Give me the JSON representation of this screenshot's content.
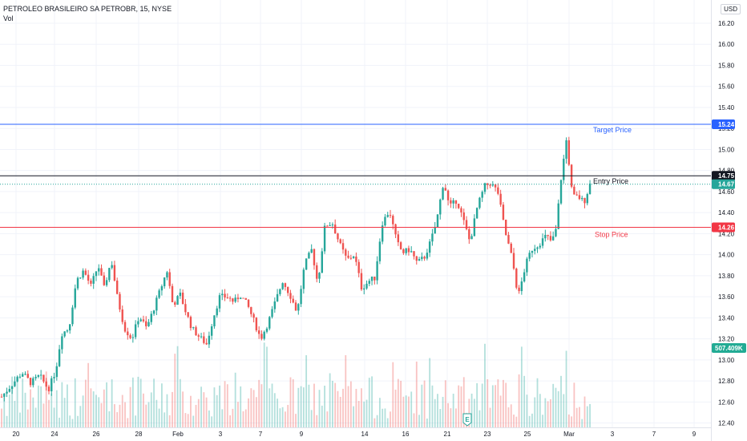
{
  "header": {
    "symbol_line": "PETROLEO BRASILEIRO SA PETROBR, 15, NYSE",
    "indicator": "Vol",
    "currency": "USD"
  },
  "colors": {
    "up": "#26a69a",
    "down": "#ef5350",
    "target": "#2962ff",
    "entry": "#131722",
    "stop": "#f23645",
    "current": "#26a69a",
    "volume_tag": "#22ab94"
  },
  "chart_data": {
    "type": "candlestick",
    "symbol": "PETROLEO BRASILEIRO SA PETROBR",
    "interval": "15",
    "exchange": "NYSE",
    "y_axis": {
      "ticks": [
        "16.20",
        "16.00",
        "15.80",
        "15.60",
        "15.40",
        "15.20",
        "15.00",
        "14.80",
        "14.60",
        "14.40",
        "14.20",
        "14.00",
        "13.80",
        "13.60",
        "13.40",
        "13.20",
        "13.00",
        "12.80",
        "12.60",
        "12.40"
      ],
      "range": [
        12.38,
        16.3
      ]
    },
    "x_axis": {
      "ticks": [
        "20",
        "24",
        "26",
        "28",
        "Feb",
        "3",
        "7",
        "9",
        "14",
        "16",
        "21",
        "23",
        "25",
        "Mar",
        "3",
        "7",
        "9"
      ]
    },
    "price_path": [
      [
        0,
        12.65
      ],
      [
        0.6,
        12.75
      ],
      [
        1.4,
        12.88
      ],
      [
        2,
        12.78
      ],
      [
        2.6,
        12.85
      ],
      [
        3.2,
        12.72
      ],
      [
        3.7,
        12.9
      ],
      [
        4.1,
        13.25
      ],
      [
        4.6,
        13.3
      ],
      [
        5.1,
        13.75
      ],
      [
        5.6,
        13.85
      ],
      [
        6.1,
        13.7
      ],
      [
        6.6,
        13.9
      ],
      [
        7,
        13.68
      ],
      [
        7.5,
        13.95
      ],
      [
        7.9,
        13.6
      ],
      [
        8.4,
        13.3
      ],
      [
        8.9,
        13.2
      ],
      [
        9.4,
        13.42
      ],
      [
        9.9,
        13.3
      ],
      [
        10.3,
        13.45
      ],
      [
        10.8,
        13.65
      ],
      [
        11.3,
        13.85
      ],
      [
        11.7,
        13.52
      ],
      [
        12.2,
        13.62
      ],
      [
        12.6,
        13.45
      ],
      [
        13,
        13.3
      ],
      [
        13.5,
        13.22
      ],
      [
        14,
        13.15
      ],
      [
        14.5,
        13.42
      ],
      [
        14.9,
        13.6
      ],
      [
        15.4,
        13.6
      ],
      [
        15.9,
        13.55
      ],
      [
        16.3,
        13.62
      ],
      [
        16.8,
        13.52
      ],
      [
        17.3,
        13.35
      ],
      [
        17.7,
        13.2
      ],
      [
        18.2,
        13.35
      ],
      [
        18.7,
        13.55
      ],
      [
        19.2,
        13.75
      ],
      [
        19.7,
        13.62
      ],
      [
        20.2,
        13.45
      ],
      [
        20.7,
        13.9
      ],
      [
        21.2,
        14.05
      ],
      [
        21.6,
        13.72
      ],
      [
        22.1,
        14.28
      ],
      [
        22.6,
        14.3
      ],
      [
        23.1,
        14.1
      ],
      [
        23.6,
        13.95
      ],
      [
        24.1,
        14.0
      ],
      [
        24.6,
        13.68
      ],
      [
        25.1,
        13.75
      ],
      [
        25.5,
        13.78
      ],
      [
        26.0,
        14.3
      ],
      [
        26.5,
        14.42
      ],
      [
        27.0,
        14.12
      ],
      [
        27.4,
        14.02
      ],
      [
        27.9,
        14.05
      ],
      [
        28.4,
        13.92
      ],
      [
        28.9,
        13.98
      ],
      [
        29.3,
        14.12
      ],
      [
        29.7,
        14.3
      ],
      [
        30.2,
        14.7
      ],
      [
        30.6,
        14.45
      ],
      [
        31.1,
        14.52
      ],
      [
        31.5,
        14.35
      ],
      [
        32.0,
        14.12
      ],
      [
        32.5,
        14.45
      ],
      [
        33.0,
        14.65
      ],
      [
        33.4,
        14.68
      ],
      [
        33.9,
        14.6
      ],
      [
        34.4,
        14.22
      ],
      [
        34.9,
        13.95
      ],
      [
        35.3,
        13.6
      ],
      [
        35.8,
        13.9
      ],
      [
        36.2,
        14.05
      ],
      [
        36.7,
        14.1
      ],
      [
        37.2,
        14.18
      ],
      [
        37.6,
        14.12
      ],
      [
        37.9,
        14.25
      ],
      [
        38.2,
        14.7
      ],
      [
        38.6,
        15.1
      ],
      [
        39.0,
        14.55
      ],
      [
        39.4,
        14.55
      ],
      [
        39.8,
        14.5
      ],
      [
        40.2,
        14.67
      ]
    ],
    "levels": [
      {
        "name": "Target Price",
        "price": 15.24,
        "label": "15.24"
      },
      {
        "name": "Entry Price",
        "price": 14.75,
        "label": "14.75"
      },
      {
        "name": "Stop Price",
        "price": 14.26,
        "label": "14.26"
      }
    ],
    "last_price": 14.67,
    "last_price_label": "14.67",
    "volume_label": "507.409K",
    "earnings_marker": "E"
  }
}
